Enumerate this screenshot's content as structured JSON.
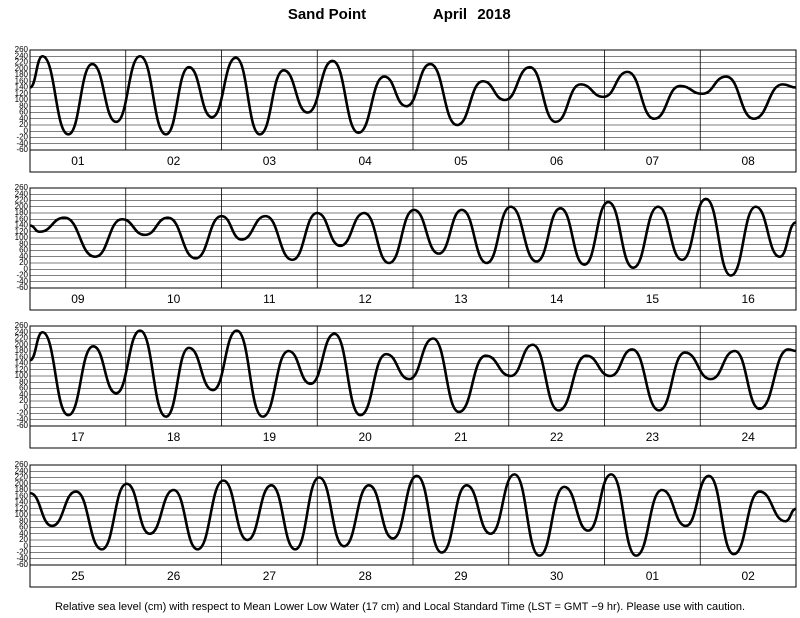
{
  "header": {
    "station": "Sand Point",
    "month": "April",
    "year": "2018"
  },
  "footer": "Relative sea level (cm) with respect to Mean Lower Low Water (17 cm) and Local Standard Time (LST = GMT −9 hr). Please use with caution.",
  "chart_data": [
    {
      "type": "line",
      "color": "#000000",
      "categories": [
        "01",
        "02",
        "03",
        "04",
        "05",
        "06",
        "07",
        "08"
      ],
      "xlim": [
        0,
        8
      ],
      "ylim": [
        -60,
        260
      ],
      "yticks": [
        -60,
        -40,
        -20,
        0,
        20,
        40,
        60,
        80,
        100,
        120,
        140,
        160,
        180,
        200,
        220,
        240,
        260
      ],
      "grid": true,
      "x": [
        0,
        0.13,
        0.4,
        0.65,
        0.9,
        1.15,
        1.42,
        1.66,
        1.9,
        2.15,
        2.4,
        2.65,
        2.9,
        3.16,
        3.43,
        3.7,
        3.93,
        4.18,
        4.46,
        4.73,
        4.96,
        5.22,
        5.49,
        5.75,
        5.99,
        6.24,
        6.52,
        6.79,
        7.02,
        7.27,
        7.56,
        7.86,
        8
      ],
      "values": [
        140,
        240,
        -10,
        215,
        30,
        240,
        -10,
        205,
        45,
        235,
        -10,
        195,
        60,
        225,
        -5,
        175,
        80,
        215,
        20,
        160,
        100,
        205,
        30,
        150,
        110,
        190,
        40,
        145,
        120,
        175,
        40,
        150,
        140
      ]
    },
    {
      "type": "line",
      "color": "#000000",
      "categories": [
        "09",
        "10",
        "11",
        "12",
        "13",
        "14",
        "15",
        "16"
      ],
      "xlim": [
        0,
        8
      ],
      "ylim": [
        -60,
        260
      ],
      "yticks": [
        -60,
        -40,
        -20,
        0,
        20,
        40,
        60,
        80,
        100,
        120,
        140,
        160,
        180,
        200,
        220,
        240,
        260
      ],
      "grid": true,
      "x": [
        0,
        0.1,
        0.36,
        0.68,
        0.96,
        1.2,
        1.44,
        1.73,
        2.0,
        2.21,
        2.46,
        2.74,
        3.0,
        3.24,
        3.49,
        3.75,
        4.01,
        4.27,
        4.51,
        4.77,
        5.02,
        5.29,
        5.54,
        5.79,
        6.04,
        6.3,
        6.56,
        6.81,
        7.06,
        7.32,
        7.58,
        7.83,
        8
      ],
      "values": [
        140,
        120,
        165,
        40,
        160,
        110,
        165,
        35,
        170,
        95,
        170,
        30,
        180,
        75,
        180,
        20,
        190,
        50,
        190,
        20,
        200,
        25,
        195,
        15,
        215,
        5,
        200,
        30,
        225,
        -20,
        200,
        40,
        150
      ]
    },
    {
      "type": "line",
      "color": "#000000",
      "categories": [
        "17",
        "18",
        "19",
        "20",
        "21",
        "22",
        "23",
        "24"
      ],
      "xlim": [
        0,
        8
      ],
      "ylim": [
        -60,
        260
      ],
      "yticks": [
        -60,
        -40,
        -20,
        0,
        20,
        40,
        60,
        80,
        100,
        120,
        140,
        160,
        180,
        200,
        220,
        240,
        260
      ],
      "grid": true,
      "x": [
        0,
        0.13,
        0.4,
        0.66,
        0.9,
        1.15,
        1.42,
        1.66,
        1.91,
        2.16,
        2.43,
        2.7,
        2.93,
        3.18,
        3.45,
        3.72,
        3.96,
        4.21,
        4.48,
        4.76,
        5.02,
        5.25,
        5.52,
        5.81,
        6.06,
        6.29,
        6.57,
        6.84,
        7.11,
        7.36,
        7.62,
        7.92,
        8
      ],
      "values": [
        150,
        240,
        -25,
        195,
        45,
        245,
        -30,
        190,
        55,
        245,
        -30,
        180,
        75,
        235,
        -25,
        170,
        90,
        220,
        -15,
        165,
        100,
        200,
        -10,
        165,
        100,
        185,
        -10,
        175,
        90,
        180,
        -5,
        185,
        180
      ]
    },
    {
      "type": "line",
      "color": "#000000",
      "categories": [
        "25",
        "26",
        "27",
        "28",
        "29",
        "30",
        "01",
        "02"
      ],
      "xlim": [
        0,
        8
      ],
      "ylim": [
        -60,
        260
      ],
      "yticks": [
        -60,
        -40,
        -20,
        0,
        20,
        40,
        60,
        80,
        100,
        120,
        140,
        160,
        180,
        200,
        220,
        240,
        260
      ],
      "grid": true,
      "x": [
        0,
        0.23,
        0.48,
        0.75,
        1.01,
        1.25,
        1.5,
        1.75,
        2.02,
        2.27,
        2.52,
        2.77,
        3.02,
        3.28,
        3.54,
        3.79,
        4.04,
        4.3,
        4.56,
        4.81,
        5.06,
        5.32,
        5.58,
        5.83,
        6.07,
        6.33,
        6.6,
        6.85,
        7.09,
        7.35,
        7.62,
        7.89,
        8
      ],
      "values": [
        170,
        65,
        175,
        -10,
        200,
        40,
        180,
        -10,
        210,
        20,
        195,
        -10,
        220,
        0,
        195,
        25,
        225,
        -20,
        195,
        40,
        230,
        -30,
        190,
        50,
        230,
        -30,
        180,
        65,
        225,
        -25,
        175,
        80,
        120
      ]
    }
  ]
}
